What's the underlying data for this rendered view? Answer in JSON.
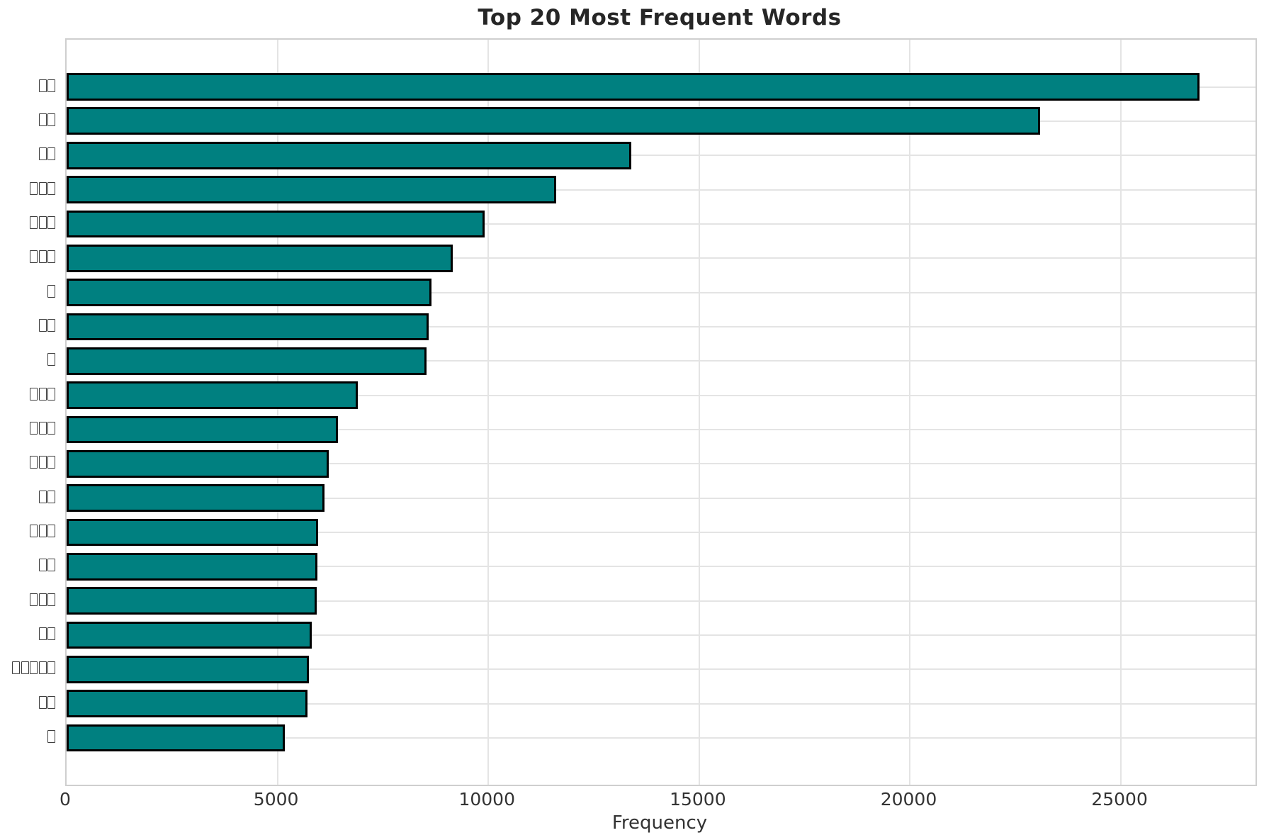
{
  "chart_data": {
    "type": "bar",
    "orientation": "horizontal",
    "title": "Top 20 Most Frequent Words",
    "xlabel": "Frequency",
    "ylabel": "",
    "note": "y-axis category labels are rendered as missing-glyph (tofu) boxes in the screenshot",
    "categories": [
      "□□",
      "□□",
      "□□",
      "□□□",
      "□□□",
      "□□□",
      "□",
      "□□",
      "□",
      "□□□",
      "□□□",
      "□□□",
      "□□",
      "□□□",
      "□□",
      "□□□",
      "□□",
      "□□□□□",
      "□□",
      "□"
    ],
    "values": [
      26860,
      23080,
      13390,
      11610,
      9910,
      9160,
      8650,
      8590,
      8530,
      6900,
      6430,
      6220,
      6120,
      5960,
      5940,
      5930,
      5810,
      5750,
      5710,
      5170
    ],
    "x_ticks": [
      0,
      5000,
      10000,
      15000,
      20000,
      25000
    ],
    "x_tick_labels": [
      "0",
      "5000",
      "10000",
      "15000",
      "20000",
      "25000"
    ],
    "xlim": [
      0,
      28190
    ],
    "grid": true,
    "legend": null,
    "colors": {
      "bar_fill": "#008080",
      "bar_edge": "#000000",
      "grid": "#e4e4e4",
      "spine": "#cfcfcf",
      "title_text": "#262626",
      "tick_text": "#333333"
    }
  }
}
